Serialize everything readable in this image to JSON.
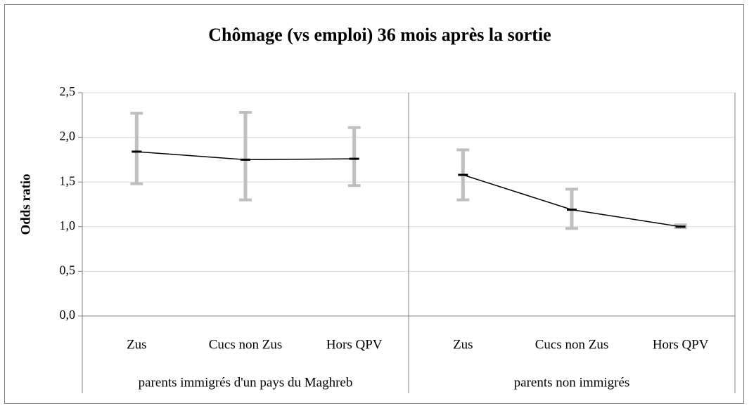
{
  "chart_data": {
    "type": "line",
    "title": "Chômage (vs emploi) 36 mois après la sortie",
    "y_label": "Odds ratio",
    "ylim": [
      0,
      2.5
    ],
    "yticks": [
      {
        "value": 0,
        "label": "0,0"
      },
      {
        "value": 0.5,
        "label": "0,5"
      },
      {
        "value": 1,
        "label": "1,0"
      },
      {
        "value": 1.5,
        "label": "1,5"
      },
      {
        "value": 2,
        "label": "2,0"
      },
      {
        "value": 2.5,
        "label": "2,5"
      }
    ],
    "grid": true,
    "line_color": "#000000",
    "error_color": "#bfbfbf",
    "groups": [
      {
        "name": "parents immigrés d'un pays du Maghreb",
        "categories": [
          "Zus",
          "Cucs non Zus",
          "Hors QPV"
        ],
        "values": [
          1.84,
          1.75,
          1.76
        ],
        "low": [
          1.48,
          1.3,
          1.46
        ],
        "high": [
          2.27,
          2.28,
          2.11
        ]
      },
      {
        "name": "parents non immigrés",
        "categories": [
          "Zus",
          "Cucs non Zus",
          "Hors QPV"
        ],
        "values": [
          1.58,
          1.19,
          1.0
        ],
        "low": [
          1.3,
          0.98,
          0.99
        ],
        "high": [
          1.86,
          1.42,
          1.02
        ]
      }
    ]
  }
}
